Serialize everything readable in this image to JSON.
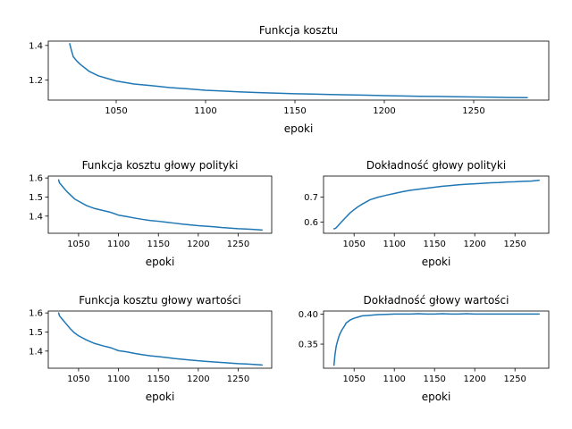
{
  "chart_data": [
    {
      "type": "line",
      "title": "Funkcja kosztu",
      "xlabel": "epoki",
      "ylabel": "",
      "xlim": [
        1012,
        1292
      ],
      "ylim": [
        1.085,
        1.425
      ],
      "xticks": [
        1050,
        1100,
        1150,
        1200,
        1250
      ],
      "xtick_labels": [
        "1050",
        "1100",
        "1150",
        "1200",
        "1250"
      ],
      "yticks": [
        1.2,
        1.4
      ],
      "ytick_labels": [
        "1.2",
        "1.4"
      ],
      "grid": false,
      "color": "#1f77b4",
      "series": [
        {
          "x": [
            1024,
            1025,
            1026,
            1028,
            1030,
            1035,
            1040,
            1045,
            1050,
            1060,
            1070,
            1080,
            1090,
            1100,
            1110,
            1120,
            1130,
            1140,
            1150,
            1160,
            1170,
            1180,
            1190,
            1200,
            1210,
            1220,
            1230,
            1240,
            1250,
            1260,
            1270,
            1280
          ],
          "y": [
            1.41,
            1.37,
            1.335,
            1.31,
            1.29,
            1.25,
            1.225,
            1.21,
            1.195,
            1.178,
            1.168,
            1.157,
            1.15,
            1.142,
            1.137,
            1.132,
            1.128,
            1.125,
            1.122,
            1.12,
            1.117,
            1.115,
            1.113,
            1.111,
            1.109,
            1.107,
            1.106,
            1.104,
            1.103,
            1.102,
            1.1,
            1.099
          ]
        }
      ]
    },
    {
      "type": "line",
      "title": "Funkcja kosztu głowy polityki",
      "xlabel": "epoki",
      "ylabel": "",
      "xlim": [
        1012,
        1292
      ],
      "ylim": [
        1.31,
        1.61
      ],
      "xticks": [
        1050,
        1100,
        1150,
        1200,
        1250
      ],
      "xtick_labels": [
        "1050",
        "1100",
        "1150",
        "1200",
        "1250"
      ],
      "yticks": [
        1.4,
        1.5,
        1.6
      ],
      "ytick_labels": [
        "1.4",
        "1.5",
        "1.6"
      ],
      "grid": false,
      "color": "#1f77b4",
      "series": [
        {
          "x": [
            1025,
            1026,
            1028,
            1030,
            1035,
            1040,
            1045,
            1050,
            1060,
            1070,
            1080,
            1090,
            1100,
            1110,
            1120,
            1130,
            1140,
            1150,
            1160,
            1170,
            1180,
            1190,
            1200,
            1210,
            1220,
            1230,
            1240,
            1250,
            1260,
            1270,
            1280
          ],
          "y": [
            1.59,
            1.575,
            1.565,
            1.555,
            1.53,
            1.51,
            1.49,
            1.478,
            1.455,
            1.44,
            1.43,
            1.42,
            1.405,
            1.398,
            1.39,
            1.383,
            1.377,
            1.373,
            1.368,
            1.363,
            1.358,
            1.354,
            1.35,
            1.347,
            1.344,
            1.34,
            1.337,
            1.334,
            1.332,
            1.33,
            1.327
          ]
        }
      ]
    },
    {
      "type": "line",
      "title": "Dokładność głowy polityki",
      "xlabel": "epoki",
      "ylabel": "",
      "xlim": [
        1012,
        1292
      ],
      "ylim": [
        0.555,
        0.785
      ],
      "xticks": [
        1050,
        1100,
        1150,
        1200,
        1250
      ],
      "xtick_labels": [
        "1050",
        "1100",
        "1150",
        "1200",
        "1250"
      ],
      "yticks": [
        0.6,
        0.7
      ],
      "ytick_labels": [
        "0.6",
        "0.7"
      ],
      "grid": false,
      "color": "#1f77b4",
      "series": [
        {
          "x": [
            1025,
            1027,
            1030,
            1035,
            1040,
            1045,
            1050,
            1055,
            1060,
            1065,
            1070,
            1080,
            1090,
            1100,
            1110,
            1120,
            1130,
            1140,
            1150,
            1160,
            1170,
            1180,
            1190,
            1200,
            1210,
            1220,
            1230,
            1240,
            1250,
            1260,
            1270,
            1280
          ],
          "y": [
            0.573,
            0.575,
            0.585,
            0.603,
            0.62,
            0.637,
            0.65,
            0.662,
            0.672,
            0.681,
            0.69,
            0.7,
            0.708,
            0.715,
            0.722,
            0.728,
            0.732,
            0.736,
            0.74,
            0.744,
            0.747,
            0.75,
            0.752,
            0.754,
            0.756,
            0.758,
            0.759,
            0.761,
            0.762,
            0.764,
            0.765,
            0.768
          ]
        }
      ]
    },
    {
      "type": "line",
      "title": "Funkcja kosztu głowy wartości",
      "xlabel": "epoki",
      "ylabel": "",
      "xlim": [
        1012,
        1292
      ],
      "ylim": [
        1.31,
        1.61
      ],
      "xticks": [
        1050,
        1100,
        1150,
        1200,
        1250
      ],
      "xtick_labels": [
        "1050",
        "1100",
        "1150",
        "1200",
        "1250"
      ],
      "yticks": [
        1.4,
        1.5,
        1.6
      ],
      "ytick_labels": [
        "1.4",
        "1.5",
        "1.6"
      ],
      "grid": false,
      "color": "#1f77b4",
      "series": [
        {
          "x": [
            1025,
            1026,
            1028,
            1030,
            1035,
            1040,
            1045,
            1050,
            1060,
            1070,
            1080,
            1090,
            1100,
            1110,
            1120,
            1130,
            1140,
            1150,
            1160,
            1170,
            1180,
            1190,
            1200,
            1210,
            1220,
            1230,
            1240,
            1250,
            1260,
            1270,
            1280
          ],
          "y": [
            1.6,
            1.585,
            1.575,
            1.565,
            1.54,
            1.515,
            1.495,
            1.48,
            1.458,
            1.44,
            1.428,
            1.418,
            1.402,
            1.396,
            1.388,
            1.381,
            1.375,
            1.371,
            1.366,
            1.361,
            1.357,
            1.353,
            1.349,
            1.346,
            1.343,
            1.34,
            1.337,
            1.334,
            1.332,
            1.33,
            1.327
          ]
        }
      ]
    },
    {
      "type": "line",
      "title": "Dokładność głowy wartości",
      "xlabel": "epoki",
      "ylabel": "",
      "xlim": [
        1012,
        1292
      ],
      "ylim": [
        0.31,
        0.405
      ],
      "xticks": [
        1050,
        1100,
        1150,
        1200,
        1250
      ],
      "xtick_labels": [
        "1050",
        "1100",
        "1150",
        "1200",
        "1250"
      ],
      "yticks": [
        0.35,
        0.4
      ],
      "ytick_labels": [
        "0.35",
        "0.40"
      ],
      "grid": false,
      "color": "#1f77b4",
      "series": [
        {
          "x": [
            1025,
            1026,
            1027,
            1028,
            1030,
            1032,
            1035,
            1038,
            1040,
            1045,
            1050,
            1055,
            1060,
            1070,
            1080,
            1090,
            1100,
            1110,
            1120,
            1130,
            1140,
            1150,
            1160,
            1170,
            1180,
            1190,
            1200,
            1210,
            1220,
            1230,
            1240,
            1250,
            1260,
            1270,
            1280
          ],
          "y": [
            0.315,
            0.33,
            0.34,
            0.348,
            0.358,
            0.366,
            0.374,
            0.38,
            0.385,
            0.39,
            0.393,
            0.395,
            0.397,
            0.398,
            0.399,
            0.3995,
            0.4,
            0.4,
            0.4,
            0.4005,
            0.4,
            0.4,
            0.4005,
            0.4,
            0.4,
            0.4005,
            0.4,
            0.4,
            0.4,
            0.4,
            0.4,
            0.4,
            0.4,
            0.4,
            0.4
          ]
        }
      ]
    }
  ]
}
